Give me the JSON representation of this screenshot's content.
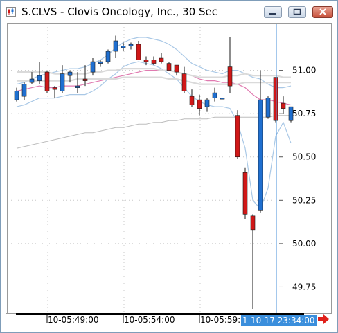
{
  "window": {
    "title": "S.CLVS - Clovis Oncology, Inc., 30 Sec",
    "buttons": [
      "minimize",
      "maximize",
      "close"
    ]
  },
  "icons": {
    "app": "chart-app-icon",
    "minimize": "minimize-icon",
    "maximize": "maximize-icon",
    "close": "close-icon",
    "scroll_right": "red-right-arrow-icon"
  },
  "colors": {
    "up_candle": "#1f6fd0",
    "down_candle": "#d01818",
    "bollinger": "#a9c8e6",
    "ma_pink": "#e07ab0",
    "ma_light": "#dadada",
    "ma_gray": "#bdbdbd",
    "cursor": "#4a90d9",
    "time_readout_bg": "#3a8edc"
  },
  "x_axis": {
    "ticks": [
      "10-05:49:00",
      "10-05:54:00",
      "10-05:59:00"
    ],
    "cursor_time": "1-10-17 23:34:00"
  },
  "chart_data": {
    "type": "candlestick",
    "y_ticks": [
      "51.00",
      "50.75",
      "50.50",
      "50.25",
      "50.00",
      "49.75"
    ],
    "ylim": [
      49.6,
      51.27
    ],
    "grid": true,
    "candles": [
      {
        "o": 50.83,
        "h": 50.9,
        "l": 50.82,
        "c": 50.88
      },
      {
        "o": 50.85,
        "h": 50.93,
        "l": 50.83,
        "c": 50.92
      },
      {
        "o": 50.93,
        "h": 50.99,
        "l": 50.92,
        "c": 50.95
      },
      {
        "o": 50.94,
        "h": 51.05,
        "l": 50.92,
        "c": 50.97
      },
      {
        "o": 50.99,
        "h": 51.0,
        "l": 50.87,
        "c": 50.88
      },
      {
        "o": 50.9,
        "h": 50.91,
        "l": 50.84,
        "c": 50.89
      },
      {
        "o": 50.88,
        "h": 51.03,
        "l": 50.87,
        "c": 50.98
      },
      {
        "o": 50.97,
        "h": 51.0,
        "l": 50.93,
        "c": 50.99
      },
      {
        "o": 50.9,
        "h": 50.99,
        "l": 50.87,
        "c": 50.91
      },
      {
        "o": 50.95,
        "h": 51.03,
        "l": 50.91,
        "c": 50.94
      },
      {
        "o": 50.99,
        "h": 51.07,
        "l": 50.97,
        "c": 51.05
      },
      {
        "o": 51.04,
        "h": 51.06,
        "l": 51.02,
        "c": 51.05
      },
      {
        "o": 51.05,
        "h": 51.12,
        "l": 51.04,
        "c": 51.11
      },
      {
        "o": 51.11,
        "h": 51.2,
        "l": 51.07,
        "c": 51.17
      },
      {
        "o": 51.13,
        "h": 51.16,
        "l": 51.11,
        "c": 51.14
      },
      {
        "o": 51.14,
        "h": 51.16,
        "l": 51.12,
        "c": 51.15
      },
      {
        "o": 51.15,
        "h": 51.17,
        "l": 51.06,
        "c": 51.06
      },
      {
        "o": 51.06,
        "h": 51.08,
        "l": 51.03,
        "c": 51.05
      },
      {
        "o": 51.06,
        "h": 51.08,
        "l": 51.03,
        "c": 51.04
      },
      {
        "o": 51.07,
        "h": 51.1,
        "l": 51.04,
        "c": 51.05
      },
      {
        "o": 51.04,
        "h": 51.05,
        "l": 51.0,
        "c": 51.0
      },
      {
        "o": 51.03,
        "h": 51.03,
        "l": 50.97,
        "c": 50.99
      },
      {
        "o": 50.98,
        "h": 51.02,
        "l": 50.87,
        "c": 50.88
      },
      {
        "o": 50.85,
        "h": 50.89,
        "l": 50.79,
        "c": 50.8
      },
      {
        "o": 50.83,
        "h": 50.86,
        "l": 50.74,
        "c": 50.78
      },
      {
        "o": 50.79,
        "h": 50.84,
        "l": 50.76,
        "c": 50.83
      },
      {
        "o": 50.84,
        "h": 50.9,
        "l": 50.82,
        "c": 50.87
      },
      {
        "o": 50.84,
        "h": 50.84,
        "l": 50.84,
        "c": 50.84
      },
      {
        "o": 51.02,
        "h": 51.19,
        "l": 50.87,
        "c": 50.91
      },
      {
        "o": 50.74,
        "h": 50.77,
        "l": 50.49,
        "c": 50.5
      },
      {
        "o": 50.41,
        "h": 50.44,
        "l": 50.14,
        "c": 50.17
      },
      {
        "o": 50.16,
        "h": 50.17,
        "l": 49.62,
        "c": 50.08
      },
      {
        "o": 50.19,
        "h": 51.0,
        "l": 50.18,
        "c": 50.83
      },
      {
        "o": 50.73,
        "h": 50.85,
        "l": 50.72,
        "c": 50.84
      },
      {
        "o": 50.96,
        "h": 50.96,
        "l": 50.7,
        "c": 50.71
      },
      {
        "o": 50.81,
        "h": 50.85,
        "l": 50.75,
        "c": 50.78
      },
      {
        "o": 50.71,
        "h": 50.79,
        "l": 50.7,
        "c": 50.79
      }
    ],
    "overlays": [
      {
        "style": "bollinger-upper",
        "values": [
          50.92,
          50.93,
          50.95,
          50.97,
          50.98,
          50.99,
          51.0,
          51.01,
          51.01,
          51.02,
          51.04,
          51.06,
          51.09,
          51.13,
          51.16,
          51.18,
          51.19,
          51.19,
          51.18,
          51.17,
          51.15,
          51.12,
          51.08,
          51.04,
          51.02,
          51.0,
          50.99,
          50.98,
          51.0,
          51.0,
          50.98,
          50.96,
          50.95,
          50.92,
          50.9,
          50.9,
          50.91
        ]
      },
      {
        "style": "bollinger-lower",
        "values": [
          50.79,
          50.8,
          50.82,
          50.84,
          50.84,
          50.84,
          50.85,
          50.86,
          50.86,
          50.86,
          50.88,
          50.91,
          50.95,
          50.98,
          51.02,
          51.04,
          51.05,
          51.04,
          51.03,
          51.01,
          50.98,
          50.95,
          50.9,
          50.85,
          50.82,
          50.8,
          50.79,
          50.79,
          50.78,
          50.7,
          50.55,
          50.25,
          50.2,
          50.32,
          50.62,
          50.7,
          50.58
        ]
      },
      {
        "style": "ma-pink",
        "values": [
          50.88,
          50.89,
          50.9,
          50.91,
          50.9,
          50.9,
          50.91,
          50.91,
          50.91,
          50.92,
          50.93,
          50.94,
          50.95,
          50.96,
          50.97,
          50.98,
          50.99,
          51.0,
          51.0,
          51.0,
          51.0,
          50.99,
          50.98,
          50.97,
          50.95,
          50.94,
          50.94,
          50.93,
          50.93,
          50.92,
          50.9,
          50.86,
          50.83,
          50.83,
          50.82,
          50.81,
          50.8
        ]
      },
      {
        "style": "ma-light",
        "values": [
          50.99,
          50.99,
          50.99,
          50.99,
          50.99,
          50.98,
          50.98,
          50.98,
          50.98,
          50.98,
          50.99,
          50.99,
          51.0,
          51.0,
          51.01,
          51.01,
          51.01,
          51.01,
          51.01,
          51.0,
          51.0,
          50.99,
          50.98,
          50.97,
          50.96,
          50.96,
          50.96,
          50.96,
          50.97,
          50.97,
          50.98,
          50.97,
          50.97,
          50.97,
          50.97,
          50.96,
          50.96
        ]
      },
      {
        "style": "ma-light",
        "values": [
          50.94,
          50.94,
          50.94,
          50.94,
          50.94,
          50.94,
          50.94,
          50.94,
          50.95,
          50.95,
          50.95,
          50.95,
          50.95,
          50.95,
          50.96,
          50.96,
          50.96,
          50.96,
          50.96,
          50.96,
          50.95,
          50.95,
          50.94,
          50.93,
          50.92,
          50.92,
          50.92,
          50.92,
          50.92,
          50.92,
          50.93,
          50.93,
          50.93,
          50.93,
          50.93,
          50.93,
          50.93
        ]
      },
      {
        "style": "ma-gray",
        "values": [
          50.55,
          50.56,
          50.57,
          50.58,
          50.59,
          50.6,
          50.61,
          50.62,
          50.63,
          50.64,
          50.64,
          50.65,
          50.66,
          50.67,
          50.67,
          50.68,
          50.69,
          50.69,
          50.7,
          50.7,
          50.71,
          50.71,
          50.72,
          50.72,
          50.72,
          50.72,
          50.73,
          50.73,
          50.73,
          50.73,
          50.73,
          50.73,
          50.73,
          50.73,
          50.74,
          50.74,
          50.74
        ]
      }
    ]
  }
}
